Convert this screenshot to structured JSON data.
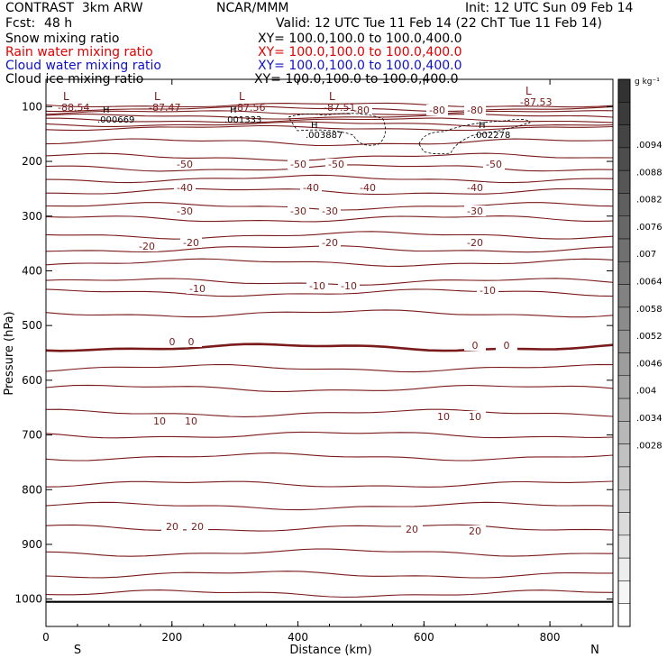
{
  "header": {
    "title": "CONTRAST  3km ARW",
    "center": "NCAR/MMM",
    "init": "Init: 12 UTC Sun 09 Feb 14",
    "fcst_label": "Fcst:",
    "fcst_value": "48 h",
    "valid": "Valid: 12 UTC Tue 11 Feb 14 (22 ChT Tue 11 Feb 14)"
  },
  "fields": [
    {
      "name": "Snow mixing ratio",
      "xy": "XY= 100.0,100.0 to 100.0,400.0",
      "color": "#000000"
    },
    {
      "name": "Rain water mixing ratio",
      "xy": "XY= 100.0,100.0 to 100.0,400.0",
      "color": "#e00000"
    },
    {
      "name": "Cloud water mixing ratio",
      "xy": "XY= 100.0,100.0 to 100.0,400.0",
      "color": "#1010c8"
    },
    {
      "name": "Cloud ice mixing ratio",
      "xy": "XY= 100.0,100.0 to 100.0,400.0",
      "color": "#000000"
    }
  ],
  "colors": {
    "contour": "#7a1a1a",
    "zero_line": "#7a1a1a",
    "ice_dash": "#000000",
    "frame": "#000000"
  },
  "chart_data": {
    "type": "contour",
    "xlabel": "Distance (km)",
    "ylabel": "Pressure (hPa)",
    "xlim": [
      0,
      900
    ],
    "ylim": [
      1050,
      50
    ],
    "x_ticks": [
      "0",
      "200",
      "400",
      "600",
      "800"
    ],
    "y_ticks": [
      "100",
      "200",
      "300",
      "400",
      "500",
      "600",
      "700",
      "800",
      "900",
      "1000"
    ],
    "x_end_labels": [
      "S",
      "N"
    ],
    "contour_levels": [
      {
        "level": -80,
        "labels": [
          "-80",
          "-80",
          "-80"
        ]
      },
      {
        "level": -50,
        "labels": [
          "-50",
          "-50",
          "-50",
          "-50"
        ]
      },
      {
        "level": -40,
        "labels": [
          "-40",
          "-40",
          "-40",
          "-40"
        ]
      },
      {
        "level": -30,
        "labels": [
          "-30",
          "-30",
          "-30",
          "-30"
        ]
      },
      {
        "level": -20,
        "labels": [
          "-20",
          "-20",
          "-20",
          "-20"
        ]
      },
      {
        "level": -10,
        "labels": [
          "-10",
          "-10",
          "-10",
          "-10"
        ]
      },
      {
        "level": 0,
        "labels": [
          "0",
          "0",
          "0",
          "0"
        ]
      },
      {
        "level": 10,
        "labels": [
          "10",
          "10",
          "10",
          "10"
        ]
      },
      {
        "level": 20,
        "labels": [
          "20",
          "20",
          "20",
          "20"
        ]
      }
    ],
    "extrema": {
      "lows": [
        {
          "symbol": "L",
          "value": "-88.54"
        },
        {
          "symbol": "L",
          "value": "-87.47"
        },
        {
          "symbol": "L",
          "value": "-87.56"
        },
        {
          "symbol": "L",
          "value": "-87.51"
        },
        {
          "symbol": "L",
          "value": "-87.53"
        }
      ],
      "highs": [
        {
          "symbol": "H",
          "value": ".000669"
        },
        {
          "symbol": "H",
          "value": ".001333"
        },
        {
          "symbol": "H",
          "value": ".003887"
        },
        {
          "symbol": "H",
          "value": ".002278"
        }
      ]
    },
    "colorbar": {
      "unit": "g kg⁻¹",
      "labels": [
        ".0094",
        ".0088",
        ".0082",
        ".0076",
        ".007",
        ".0064",
        ".0058",
        ".0052",
        ".0046",
        ".004",
        ".0034",
        ".0028"
      ]
    }
  }
}
